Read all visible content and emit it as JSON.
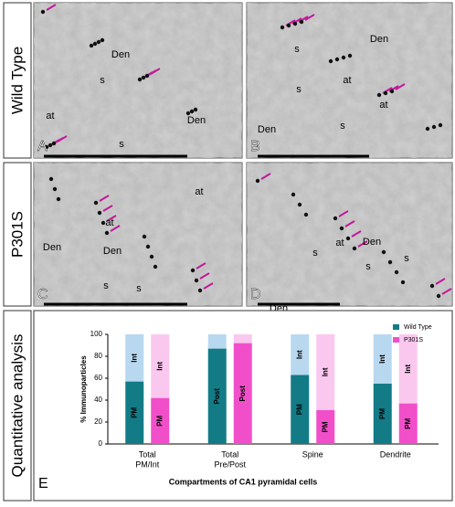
{
  "rows": [
    "Wild Type",
    "P301S",
    "Quantitative analysis"
  ],
  "panels": [
    {
      "letter": "A",
      "labels": [
        "Den",
        "s",
        "at",
        "Den",
        "s"
      ]
    },
    {
      "letter": "B",
      "labels": [
        "Den",
        "s",
        "at",
        "s",
        "at",
        "s",
        "Den"
      ]
    },
    {
      "letter": "C",
      "labels": [
        "at",
        "at",
        "Den",
        "Den",
        "s",
        "s"
      ]
    },
    {
      "letter": "D",
      "labels": [
        "Den",
        "at",
        "s",
        "s",
        "s",
        "Den"
      ]
    }
  ],
  "chart_data": {
    "type": "stacked_bar",
    "letter": "E",
    "ylabel": "% Immunoparticles",
    "xlabel": "Compartments of CA1 pyramidal cells",
    "categories": [
      [
        "Total",
        "PM/Int"
      ],
      [
        "Total",
        "Pre/Post"
      ],
      [
        "Spine"
      ],
      [
        "Dendrite"
      ]
    ],
    "bottom_labels": [
      "PM",
      "Post",
      "PM",
      "PM"
    ],
    "top_labels": [
      "Int",
      null,
      "Int",
      "Int"
    ],
    "series": [
      {
        "name": "Wild Type",
        "color": "#127b86",
        "top_color": "#b8d8ef",
        "bottom": [
          57,
          87,
          63,
          55
        ],
        "top": [
          43,
          13,
          37,
          45
        ]
      },
      {
        "name": "P301S",
        "color": "#f14fca",
        "top_color": "#fac8ef",
        "bottom": [
          42,
          92,
          31,
          37
        ],
        "top": [
          58,
          8,
          69,
          63
        ]
      }
    ],
    "ylim": [
      0,
      100
    ],
    "yticks": [
      0,
      20,
      40,
      60,
      80,
      100
    ],
    "legend": "upper right"
  }
}
